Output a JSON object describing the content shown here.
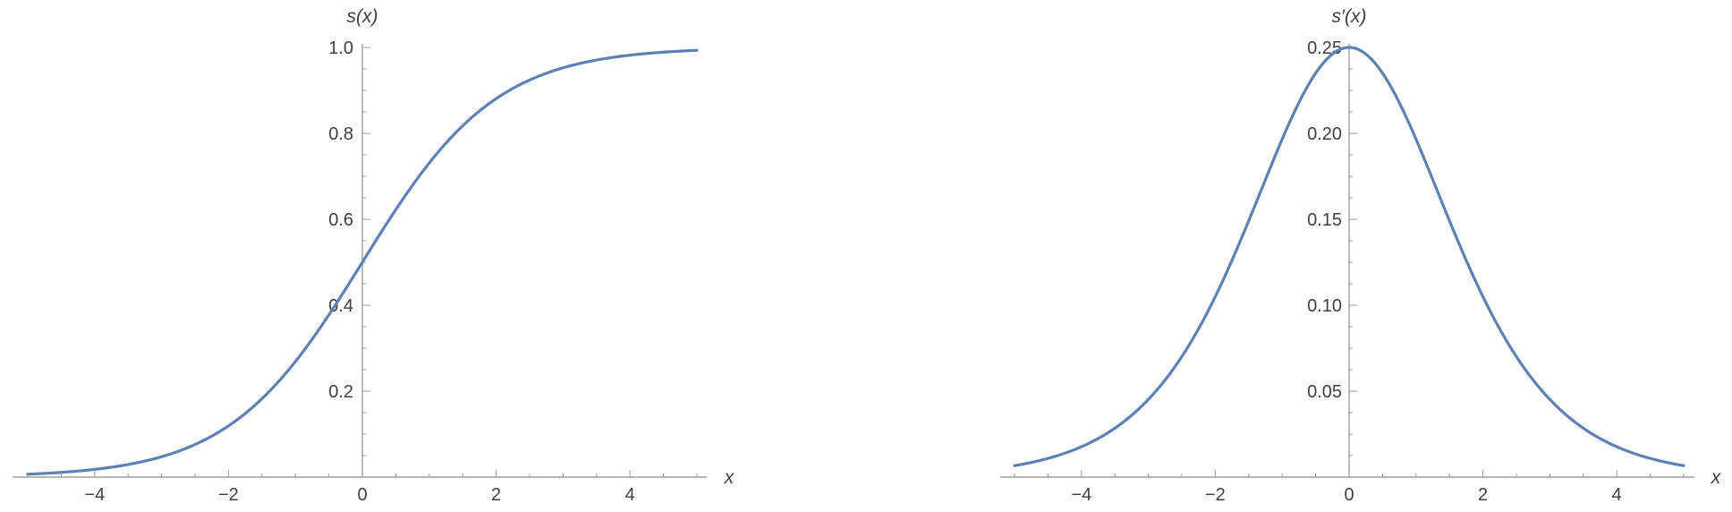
{
  "chart_data": [
    {
      "type": "line",
      "title": "",
      "xlabel": "x",
      "ylabel": "s(x)",
      "xlim": [
        -5,
        5
      ],
      "ylim": [
        0,
        1.0
      ],
      "x_ticks": [
        -4,
        -2,
        0,
        2,
        4
      ],
      "x_tick_labels": [
        "−4",
        "−2",
        "0",
        "2",
        "4"
      ],
      "y_ticks": [
        0.2,
        0.4,
        0.6,
        0.8,
        1.0
      ],
      "y_tick_labels": [
        "0.2",
        "0.4",
        "0.6",
        "0.8",
        "1.0"
      ],
      "grid": false,
      "series": [
        {
          "color": "#5e81b5",
          "x": [
            -5,
            -4,
            -3,
            -2,
            -1,
            0,
            1,
            2,
            3,
            4,
            5
          ],
          "y": [
            0.0067,
            0.018,
            0.047,
            0.119,
            0.269,
            0.5,
            0.731,
            0.881,
            0.953,
            0.982,
            0.9933
          ]
        }
      ]
    },
    {
      "type": "line",
      "title": "",
      "xlabel": "x",
      "ylabel": "s′(x)",
      "xlim": [
        -5,
        5
      ],
      "ylim": [
        0,
        0.25
      ],
      "x_ticks": [
        -4,
        -2,
        0,
        2,
        4
      ],
      "x_tick_labels": [
        "−4",
        "−2",
        "0",
        "2",
        "4"
      ],
      "y_ticks": [
        0.05,
        0.1,
        0.15,
        0.2,
        0.25
      ],
      "y_tick_labels": [
        "0.05",
        "0.10",
        "0.15",
        "0.20",
        "0.25"
      ],
      "grid": false,
      "series": [
        {
          "color": "#5e81b5",
          "x": [
            -5,
            -4,
            -3,
            -2,
            -1,
            0,
            1,
            2,
            3,
            4,
            5
          ],
          "y": [
            0.0066,
            0.0177,
            0.0452,
            0.105,
            0.1966,
            0.25,
            0.1966,
            0.105,
            0.0452,
            0.0177,
            0.0066
          ]
        }
      ]
    }
  ]
}
